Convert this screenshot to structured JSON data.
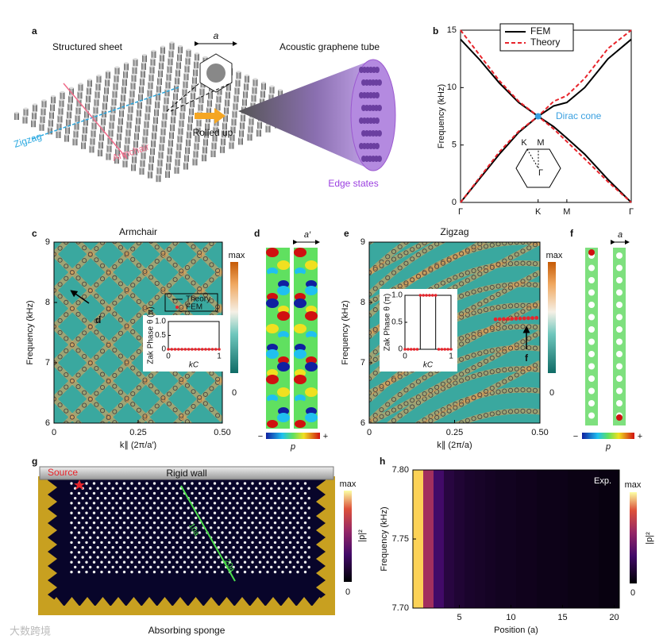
{
  "watermark": "大数跨境",
  "panels": {
    "a": {
      "label": "a",
      "sheet_title": "Structured sheet",
      "tube_title": "Acoustic graphene tube",
      "lattice": "a",
      "zigzag": "Zigzag",
      "armchair": "Armchair",
      "rolled": "Rolled up",
      "edge": "Edge states"
    },
    "b": {
      "label": "b",
      "type": "line",
      "ylabel": "Frequency (kHz)",
      "xlim": [
        0,
        2.2
      ],
      "ylim": [
        0,
        15
      ],
      "xticks": [
        {
          "value": 0,
          "label": "Γ"
        },
        {
          "value": 1,
          "label": "K"
        },
        {
          "value": 1.37,
          "label": "M"
        },
        {
          "value": 2.2,
          "label": "Γ"
        }
      ],
      "yticks": [
        0,
        5,
        10,
        15
      ],
      "legend": "top",
      "x": [
        0,
        0.25,
        0.5,
        0.75,
        1,
        1.2,
        1.37,
        1.6,
        1.9,
        2.2
      ],
      "series": [
        {
          "name": "FEM",
          "color": "#000000",
          "dash": false,
          "branches": [
            [
              0,
              2.1,
              4.2,
              6.1,
              7.5,
              6.6,
              5.6,
              4.2,
              2,
              0
            ],
            [
              14.2,
              12.4,
              10.4,
              8.7,
              7.5,
              8.4,
              8.7,
              10,
              12.5,
              14.2
            ]
          ]
        },
        {
          "name": "Theory",
          "color": "#e8242b",
          "dash": true,
          "branches": [
            [
              0,
              2.2,
              4.4,
              6.2,
              7.5,
              6.4,
              5.3,
              3.8,
              1.8,
              0
            ],
            [
              15,
              12.8,
              10.6,
              8.8,
              7.5,
              8.8,
              9.3,
              10.8,
              13.4,
              15
            ]
          ]
        }
      ],
      "annotation": "Dirac cone",
      "inset": {
        "k": "K",
        "m": "M",
        "g": "Γ"
      }
    },
    "c": {
      "label": "c",
      "title": "Armchair",
      "ylabel": "Frequency (kHz)",
      "xlabel": "k∥ (2π/a′)",
      "xlim": [
        0,
        0.5
      ],
      "ylim": [
        6,
        9
      ],
      "xticks": [
        0,
        0.25,
        {
          "value": 0.5,
          "label": "0.50"
        }
      ],
      "yticks": [
        6,
        7,
        8,
        9
      ],
      "colorbar": {
        "max": "max",
        "min": "0"
      },
      "arrow": "d",
      "inset": {
        "ylabel": "Zak Phase θ (π)",
        "xlabel": "kC",
        "theory": "Theory",
        "fem": "FEM",
        "xticks": [
          0,
          1
        ],
        "yticks": [
          0,
          0.5,
          {
            "value": 1,
            "label": "1.0"
          }
        ],
        "kc": [
          0,
          0.0667,
          0.1333,
          0.2,
          0.2667,
          0.3333,
          0.4,
          0.4667,
          0.5333,
          0.6,
          0.6667,
          0.7333,
          0.8,
          0.8667,
          0.9333,
          1
        ],
        "fem_values": [
          0,
          0,
          0,
          0,
          0,
          0,
          0,
          0,
          0,
          0,
          0,
          0,
          0,
          0,
          0,
          0
        ],
        "theory_x": [
          0,
          1
        ],
        "theory_values": [
          0,
          0
        ]
      }
    },
    "d": {
      "label": "d",
      "period": "a′",
      "colorbar": {
        "min": "−",
        "max": "+",
        "name": "p"
      }
    },
    "e": {
      "label": "e",
      "title": "Zigzag",
      "ylabel": "Frequency (kHz)",
      "xlabel": "k∥ (2π/a)",
      "xlim": [
        0,
        0.5
      ],
      "ylim": [
        6,
        9
      ],
      "xticks": [
        0,
        0.25,
        {
          "value": 0.5,
          "label": "0.50"
        }
      ],
      "yticks": [
        6,
        7,
        8,
        9
      ],
      "colorbar": {
        "max": "max",
        "min": "0"
      },
      "arrow": "f",
      "inset": {
        "ylabel": "Zak Phase θ (π)",
        "xlabel": "kC",
        "xticks": [
          0,
          1
        ],
        "yticks": [
          0,
          0.5,
          {
            "value": 1,
            "label": "1.0"
          }
        ],
        "kc": [
          0,
          0.0667,
          0.1333,
          0.2,
          0.2667,
          0.3333,
          0.4,
          0.4667,
          0.5333,
          0.6,
          0.6667,
          0.7333,
          0.8,
          0.8667,
          0.9333,
          1
        ],
        "fem_values": [
          0,
          0,
          0,
          0,
          0,
          1,
          1,
          1,
          1,
          1,
          1,
          0,
          0,
          0,
          0,
          0
        ],
        "theory_x": [
          0,
          0.333,
          0.333,
          0.667,
          0.667,
          1
        ],
        "theory_values": [
          0,
          0,
          1,
          1,
          0,
          0
        ]
      }
    },
    "f": {
      "label": "f",
      "period": "a",
      "colorbar": {
        "min": "−",
        "max": "+",
        "name": "p"
      }
    },
    "g": {
      "label": "g",
      "source": "Source",
      "wall": "Rigid wall",
      "sponge": "Absorbing sponge",
      "len1": "10a",
      "len2": "20a",
      "colorbar": {
        "max": "max",
        "min": "0",
        "name": "|p|²"
      }
    },
    "h": {
      "label": "h",
      "type": "heatmap",
      "ylabel": "Frequency (kHz)",
      "xlabel": "Position (a)",
      "note": "Exp.",
      "xlim": [
        0.5,
        20.5
      ],
      "ylim": [
        7.7,
        7.8
      ],
      "xticks": [
        5,
        10,
        15,
        20
      ],
      "yticks": [
        {
          "value": 7.7,
          "label": "7.70"
        },
        7.75,
        {
          "value": 7.8,
          "label": "7.80"
        }
      ],
      "positions": [
        1,
        2,
        3,
        4,
        5,
        6,
        7,
        8,
        9,
        10,
        11,
        12,
        13,
        14,
        15,
        16,
        17,
        18,
        19,
        20
      ],
      "intensity": [
        0.95,
        0.55,
        0.25,
        0.15,
        0.12,
        0.1,
        0.09,
        0.08,
        0.07,
        0.07,
        0.06,
        0.06,
        0.05,
        0.05,
        0.05,
        0.04,
        0.04,
        0.04,
        0.03,
        0.03
      ],
      "colorbar": {
        "max": "max",
        "min": "0",
        "name": "|p|²"
      }
    }
  }
}
